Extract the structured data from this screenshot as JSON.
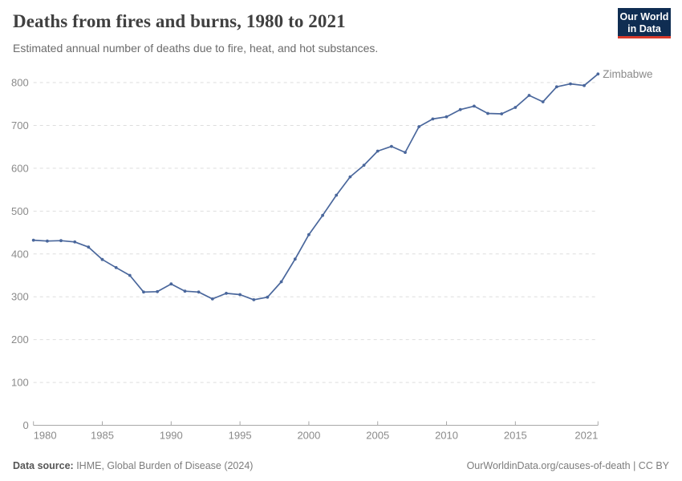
{
  "header": {
    "title": "Deaths from fires and burns, 1980 to 2021",
    "subtitle": "Estimated annual number of deaths due to fire, heat, and hot substances.",
    "logo": {
      "line1": "Our World",
      "line2": "in Data"
    }
  },
  "footer": {
    "source_label": "Data source:",
    "source_text": " IHME, Global Burden of Disease (2024)",
    "link_text": "OurWorldinData.org/causes-of-death | CC BY"
  },
  "colors": {
    "line": "#4a679c",
    "entity_label": "#3d6b9e",
    "grid": "#dedede",
    "axis": "#a8a8a8",
    "tick_text": "#8a8a8a",
    "logo_bg": "#0f2d52",
    "logo_stripe": "#d93a2b"
  },
  "chart_data": {
    "type": "line",
    "title": "Deaths from fires and burns, 1980 to 2021",
    "subtitle": "Estimated annual number of deaths due to fire, heat, and hot substances.",
    "grid": "horizontal-dashed",
    "legend_position": "end-of-line",
    "xlim": [
      1980,
      2021
    ],
    "ylim": [
      0,
      860
    ],
    "x_ticks": [
      1980,
      1985,
      1990,
      1995,
      2000,
      2005,
      2010,
      2015,
      2021
    ],
    "y_ticks": [
      0,
      100,
      200,
      300,
      400,
      500,
      600,
      700,
      800
    ],
    "series": [
      {
        "name": "Zimbabwe",
        "x": [
          1980,
          1981,
          1982,
          1983,
          1984,
          1985,
          1986,
          1987,
          1988,
          1989,
          1990,
          1991,
          1992,
          1993,
          1994,
          1995,
          1996,
          1997,
          1998,
          1999,
          2000,
          2001,
          2002,
          2003,
          2004,
          2005,
          2006,
          2007,
          2008,
          2009,
          2010,
          2011,
          2012,
          2013,
          2014,
          2015,
          2016,
          2017,
          2018,
          2019,
          2020,
          2021
        ],
        "values": [
          432,
          430,
          431,
          428,
          416,
          387,
          368,
          350,
          311,
          312,
          330,
          313,
          311,
          295,
          308,
          305,
          293,
          299,
          335,
          388,
          445,
          490,
          537,
          580,
          607,
          640,
          651,
          637,
          697,
          715,
          720,
          737,
          745,
          728,
          727,
          742,
          770,
          755,
          790,
          797,
          793,
          820
        ]
      }
    ]
  }
}
